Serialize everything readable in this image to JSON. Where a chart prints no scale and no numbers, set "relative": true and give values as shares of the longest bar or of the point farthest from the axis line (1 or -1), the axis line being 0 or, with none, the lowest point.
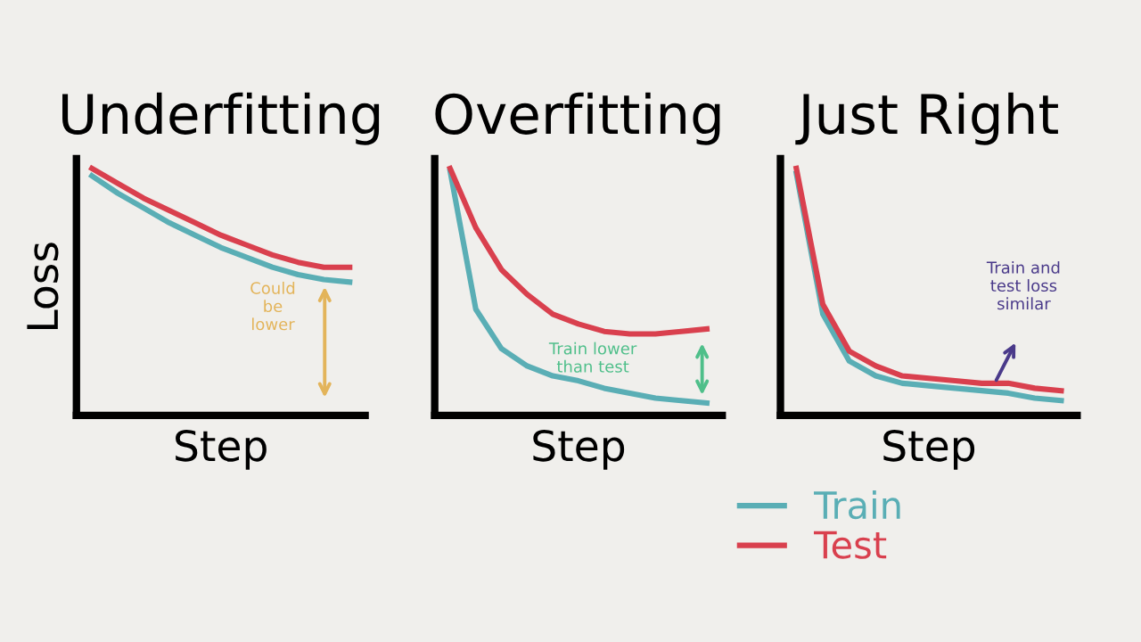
{
  "chart_data": [
    {
      "type": "line",
      "title": "Underfitting",
      "xlabel": "Step",
      "ylabel": "Loss",
      "relative": true,
      "categories": [
        null,
        null,
        null,
        null,
        null,
        null,
        null,
        null,
        null,
        null,
        null
      ],
      "series": [
        {
          "color": "#5aaeb5",
          "values": [
            0.97,
            0.9,
            0.84,
            0.78,
            0.73,
            0.68,
            0.64,
            0.6,
            0.57,
            0.55,
            0.54
          ]
        },
        {
          "color": "#d9404e",
          "values": [
            1,
            0.94,
            0.88,
            0.83,
            0.78,
            0.73,
            0.69,
            0.65,
            0.62,
            0.6,
            0.6
          ]
        }
      ],
      "annotations": [
        "Could\nbe\nlower"
      ],
      "marker": "none",
      "line_style": "solid",
      "grid": false,
      "legend": false
    },
    {
      "type": "line",
      "title": "Overfitting",
      "xlabel": "Step",
      "relative": true,
      "categories": [
        null,
        null,
        null,
        null,
        null,
        null,
        null,
        null,
        null,
        null,
        null
      ],
      "series": [
        {
          "color": "#5aaeb5",
          "values": [
            0.99,
            0.43,
            0.27,
            0.2,
            0.16,
            0.14,
            0.11,
            0.09,
            0.07,
            0.06,
            0.05
          ]
        },
        {
          "color": "#d9404e",
          "values": [
            1,
            0.76,
            0.59,
            0.49,
            0.41,
            0.37,
            0.34,
            0.33,
            0.33,
            0.34,
            0.35
          ]
        }
      ],
      "annotations": [
        "Train lower\nthan test"
      ],
      "marker": "none",
      "line_style": "solid",
      "grid": false,
      "legend": false
    },
    {
      "type": "line",
      "title": "Just Right",
      "xlabel": "Step",
      "relative": true,
      "categories": [
        null,
        null,
        null,
        null,
        null,
        null,
        null,
        null,
        null,
        null,
        null
      ],
      "series": [
        {
          "name": "Train",
          "color": "#5aaeb5",
          "values": [
            0.98,
            0.41,
            0.22,
            0.16,
            0.13,
            0.12,
            0.11,
            0.1,
            0.09,
            0.07,
            0.06
          ]
        },
        {
          "name": "Test",
          "color": "#d9404e",
          "values": [
            1,
            0.45,
            0.26,
            0.2,
            0.16,
            0.15,
            0.14,
            0.13,
            0.13,
            0.11,
            0.1
          ]
        }
      ],
      "annotations": [
        "Train and\ntest loss\nsimilar"
      ],
      "marker": "none",
      "line_style": "solid",
      "grid": false,
      "legend": "bottom"
    }
  ]
}
